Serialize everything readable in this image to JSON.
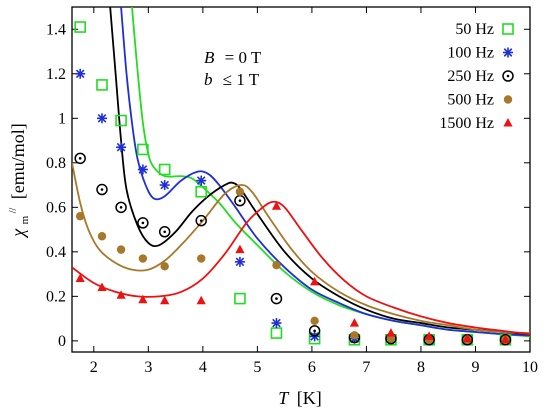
{
  "chart_data": {
    "type": "scatter",
    "title": "",
    "xlabel": {
      "symbol": "T",
      "unit": "[K]"
    },
    "ylabel": {
      "symbol": "χ",
      "sub": "m",
      "sup": "//",
      "unit": "[emu/mol]"
    },
    "xlim": [
      1.6,
      10.0
    ],
    "ylim": [
      -0.05,
      1.5
    ],
    "xticks": [
      2,
      3,
      4,
      5,
      6,
      7,
      8,
      9,
      10
    ],
    "yticks": [
      0,
      0.2,
      0.4,
      0.6,
      0.8,
      1.0,
      1.2,
      1.4
    ],
    "xtick_labels": [
      "2",
      "3",
      "4",
      "5",
      "6",
      "7",
      "8",
      "9",
      "10"
    ],
    "ytick_labels": [
      "0",
      "0.2",
      "0.4",
      "0.6",
      "0.8",
      "1",
      "1.2",
      "1.4"
    ],
    "grid": false,
    "legend_position": "top-right",
    "annotations": [
      {
        "sym": "B",
        "rel": "= 0 T"
      },
      {
        "sym": "b",
        "rel": "≤ 1 T"
      }
    ],
    "series": [
      {
        "name": "50 Hz",
        "color": "#22dd22",
        "marker": "square-open",
        "points": [
          [
            1.75,
            1.41
          ],
          [
            2.15,
            1.15
          ],
          [
            2.5,
            0.99
          ],
          [
            2.9,
            0.86
          ],
          [
            3.3,
            0.77
          ],
          [
            3.97,
            0.67
          ],
          [
            4.68,
            0.19
          ],
          [
            5.35,
            0.035
          ],
          [
            6.05,
            0.01
          ],
          [
            6.78,
            0.005
          ],
          [
            7.45,
            0.005
          ],
          [
            8.15,
            0.005
          ],
          [
            8.85,
            0.005
          ],
          [
            9.55,
            0.005
          ]
        ],
        "fit": [
          [
            2.7,
            1.5
          ],
          [
            2.8,
            1.22
          ],
          [
            2.9,
            0.98
          ],
          [
            3.0,
            0.84
          ],
          [
            3.1,
            0.78
          ],
          [
            3.3,
            0.74
          ],
          [
            3.6,
            0.74
          ],
          [
            3.8,
            0.73
          ],
          [
            4.0,
            0.69
          ],
          [
            4.3,
            0.62
          ],
          [
            4.6,
            0.53
          ],
          [
            5.0,
            0.43
          ],
          [
            5.5,
            0.31
          ],
          [
            6.0,
            0.22
          ],
          [
            6.5,
            0.16
          ],
          [
            7.0,
            0.12
          ],
          [
            7.5,
            0.09
          ],
          [
            8.0,
            0.07
          ],
          [
            8.5,
            0.05
          ],
          [
            9.0,
            0.04
          ],
          [
            9.5,
            0.03
          ],
          [
            10.0,
            0.02
          ]
        ]
      },
      {
        "name": "100 Hz",
        "color": "#1f2fd6",
        "marker": "asterisk",
        "points": [
          [
            1.75,
            1.2
          ],
          [
            2.15,
            1.0
          ],
          [
            2.5,
            0.87
          ],
          [
            2.9,
            0.77
          ],
          [
            3.3,
            0.7
          ],
          [
            3.97,
            0.72
          ],
          [
            4.68,
            0.355
          ],
          [
            5.35,
            0.08
          ],
          [
            6.05,
            0.02
          ],
          [
            6.78,
            0.01
          ],
          [
            7.45,
            0.01
          ],
          [
            8.15,
            0.005
          ],
          [
            8.85,
            0.005
          ],
          [
            9.55,
            0.005
          ]
        ],
        "fit": [
          [
            2.5,
            1.5
          ],
          [
            2.6,
            1.2
          ],
          [
            2.7,
            0.98
          ],
          [
            2.8,
            0.82
          ],
          [
            2.95,
            0.7
          ],
          [
            3.1,
            0.64
          ],
          [
            3.3,
            0.65
          ],
          [
            3.6,
            0.72
          ],
          [
            3.9,
            0.76
          ],
          [
            4.1,
            0.75
          ],
          [
            4.3,
            0.7
          ],
          [
            4.6,
            0.6
          ],
          [
            5.0,
            0.46
          ],
          [
            5.5,
            0.33
          ],
          [
            6.0,
            0.23
          ],
          [
            6.5,
            0.17
          ],
          [
            7.0,
            0.12
          ],
          [
            7.5,
            0.09
          ],
          [
            8.0,
            0.07
          ],
          [
            8.5,
            0.05
          ],
          [
            9.0,
            0.04
          ],
          [
            9.5,
            0.03
          ],
          [
            10.0,
            0.025
          ]
        ]
      },
      {
        "name": "250 Hz",
        "color": "#000000",
        "marker": "circle-dot",
        "points": [
          [
            1.75,
            0.82
          ],
          [
            2.15,
            0.68
          ],
          [
            2.5,
            0.6
          ],
          [
            2.9,
            0.53
          ],
          [
            3.3,
            0.49
          ],
          [
            3.97,
            0.54
          ],
          [
            4.68,
            0.63
          ],
          [
            5.35,
            0.19
          ],
          [
            6.05,
            0.045
          ],
          [
            6.78,
            0.015
          ],
          [
            7.45,
            0.01
          ],
          [
            8.15,
            0.005
          ],
          [
            8.85,
            0.005
          ],
          [
            9.55,
            0.005
          ]
        ],
        "fit": [
          [
            2.3,
            1.5
          ],
          [
            2.4,
            1.2
          ],
          [
            2.5,
            0.9
          ],
          [
            2.6,
            0.68
          ],
          [
            2.8,
            0.52
          ],
          [
            3.0,
            0.44
          ],
          [
            3.2,
            0.43
          ],
          [
            3.5,
            0.49
          ],
          [
            3.8,
            0.58
          ],
          [
            4.1,
            0.65
          ],
          [
            4.4,
            0.7
          ],
          [
            4.55,
            0.71
          ],
          [
            4.7,
            0.68
          ],
          [
            5.0,
            0.57
          ],
          [
            5.5,
            0.4
          ],
          [
            6.0,
            0.28
          ],
          [
            6.5,
            0.2
          ],
          [
            7.0,
            0.14
          ],
          [
            7.5,
            0.1
          ],
          [
            8.0,
            0.08
          ],
          [
            8.5,
            0.06
          ],
          [
            9.0,
            0.05
          ],
          [
            9.5,
            0.04
          ],
          [
            10.0,
            0.03
          ]
        ]
      },
      {
        "name": "500 Hz",
        "color": "#a8782a",
        "marker": "filled-circle",
        "points": [
          [
            1.75,
            0.56
          ],
          [
            2.15,
            0.47
          ],
          [
            2.5,
            0.41
          ],
          [
            2.9,
            0.37
          ],
          [
            3.3,
            0.335
          ],
          [
            3.97,
            0.37
          ],
          [
            4.68,
            0.67
          ],
          [
            5.35,
            0.34
          ],
          [
            6.05,
            0.09
          ],
          [
            6.78,
            0.025
          ],
          [
            7.45,
            0.01
          ],
          [
            8.15,
            0.005
          ],
          [
            8.85,
            0.005
          ],
          [
            9.55,
            0.005
          ]
        ],
        "fit": [
          [
            1.6,
            0.8
          ],
          [
            1.75,
            0.62
          ],
          [
            1.9,
            0.5
          ],
          [
            2.1,
            0.41
          ],
          [
            2.4,
            0.35
          ],
          [
            2.7,
            0.32
          ],
          [
            3.0,
            0.32
          ],
          [
            3.3,
            0.36
          ],
          [
            3.6,
            0.43
          ],
          [
            4.0,
            0.54
          ],
          [
            4.4,
            0.66
          ],
          [
            4.7,
            0.7
          ],
          [
            4.9,
            0.67
          ],
          [
            5.2,
            0.56
          ],
          [
            5.6,
            0.42
          ],
          [
            6.0,
            0.31
          ],
          [
            6.5,
            0.22
          ],
          [
            7.0,
            0.16
          ],
          [
            7.5,
            0.12
          ],
          [
            8.0,
            0.09
          ],
          [
            8.5,
            0.07
          ],
          [
            9.0,
            0.05
          ],
          [
            9.5,
            0.04
          ],
          [
            10.0,
            0.035
          ]
        ]
      },
      {
        "name": "1500 Hz",
        "color": "#ee1111",
        "marker": "filled-triangle",
        "points": [
          [
            1.75,
            0.28
          ],
          [
            2.15,
            0.24
          ],
          [
            2.5,
            0.205
          ],
          [
            2.9,
            0.185
          ],
          [
            3.3,
            0.18
          ],
          [
            3.97,
            0.18
          ],
          [
            4.68,
            0.41
          ],
          [
            5.35,
            0.605
          ],
          [
            6.05,
            0.265
          ],
          [
            6.78,
            0.08
          ],
          [
            7.45,
            0.035
          ],
          [
            8.15,
            0.02
          ],
          [
            8.85,
            0.01
          ],
          [
            9.55,
            0.005
          ]
        ],
        "fit": [
          [
            1.6,
            0.33
          ],
          [
            2.0,
            0.26
          ],
          [
            2.4,
            0.22
          ],
          [
            2.8,
            0.2
          ],
          [
            3.2,
            0.2
          ],
          [
            3.6,
            0.22
          ],
          [
            4.0,
            0.28
          ],
          [
            4.4,
            0.39
          ],
          [
            4.8,
            0.53
          ],
          [
            5.1,
            0.6
          ],
          [
            5.3,
            0.625
          ],
          [
            5.5,
            0.6
          ],
          [
            5.8,
            0.5
          ],
          [
            6.2,
            0.37
          ],
          [
            6.6,
            0.27
          ],
          [
            7.0,
            0.2
          ],
          [
            7.5,
            0.15
          ],
          [
            8.0,
            0.11
          ],
          [
            8.5,
            0.08
          ],
          [
            9.0,
            0.06
          ],
          [
            9.5,
            0.045
          ],
          [
            10.0,
            0.03
          ]
        ]
      }
    ]
  }
}
